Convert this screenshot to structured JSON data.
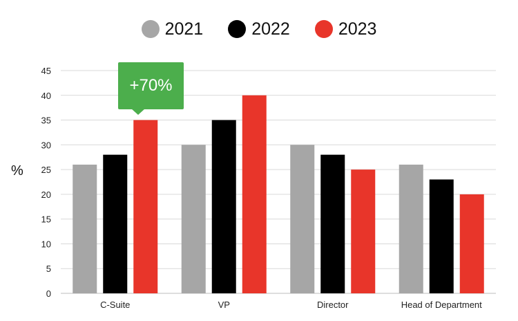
{
  "legend": [
    {
      "label": "2021",
      "color": "#a6a6a6"
    },
    {
      "label": "2022",
      "color": "#000000"
    },
    {
      "label": "2023",
      "color": "#e8352a"
    }
  ],
  "callout": {
    "text": "+70%",
    "color": "#4cae4c"
  },
  "chart_data": {
    "type": "bar",
    "categories": [
      "C-Suite",
      "VP",
      "Director",
      "Head of Department"
    ],
    "series": [
      {
        "name": "2021",
        "values": [
          26,
          30,
          30,
          26
        ],
        "color": "#a6a6a6"
      },
      {
        "name": "2022",
        "values": [
          28,
          35,
          28,
          23
        ],
        "color": "#000000"
      },
      {
        "name": "2023",
        "values": [
          35,
          40,
          25,
          20
        ],
        "color": "#e8352a"
      }
    ],
    "title": "",
    "xlabel": "",
    "ylabel": "%",
    "ylim": [
      0,
      45
    ],
    "yticks": [
      0,
      5,
      10,
      15,
      20,
      25,
      30,
      35,
      40,
      45
    ],
    "grid": true,
    "legend_position": "top-center"
  }
}
